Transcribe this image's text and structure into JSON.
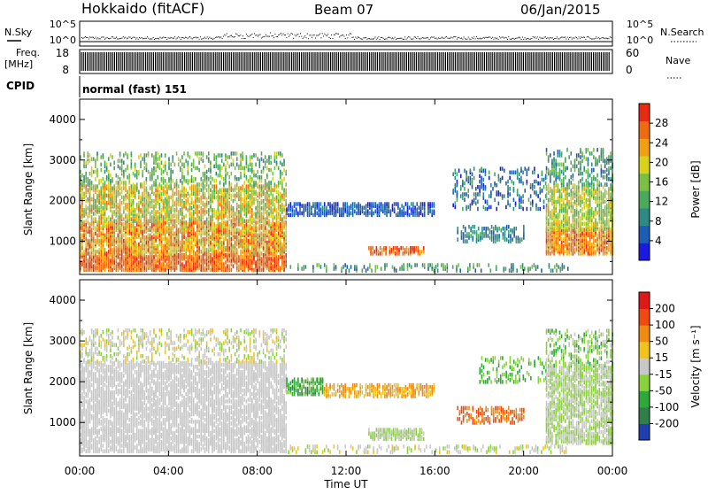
{
  "header": {
    "station": "Hokkaido (fitACF)",
    "beam": "Beam 07",
    "date": "06/Jan/2015"
  },
  "cpid_label": "CPID",
  "mode_label": "normal (fast) 151",
  "sky_panel": {
    "left_label": "N.Sky",
    "right_label": "N.Search",
    "left_ticks": [
      "10^5",
      "10^0"
    ],
    "right_ticks": [
      "10^5",
      "10^0"
    ]
  },
  "freq_panel": {
    "left_label_1": "Freq.",
    "left_label_2": "[MHz]",
    "right_label": "Nave",
    "left_ticks": [
      "18",
      "8"
    ],
    "right_ticks": [
      "60",
      "0"
    ]
  },
  "chart_data": [
    {
      "type": "heatmap",
      "panel": "power",
      "ylabel": "Slant Range [km]",
      "ylim": [
        180,
        4500
      ],
      "yticks": [
        1000,
        2000,
        3000,
        4000
      ],
      "colorbar": {
        "label": "Power [dB]",
        "ticks": [
          4,
          8,
          12,
          16,
          20,
          24,
          28
        ],
        "range": [
          0,
          32
        ],
        "colors": [
          "#1a1ae0",
          "#1d5db5",
          "#2f8a86",
          "#4ca85a",
          "#7bc044",
          "#d8d21a",
          "#f0a012",
          "#f06a10",
          "#e82a10"
        ]
      }
    },
    {
      "type": "heatmap",
      "panel": "velocity",
      "ylabel": "Slant Range [km]",
      "ylim": [
        180,
        4500
      ],
      "yticks": [
        1000,
        2000,
        3000,
        4000
      ],
      "xlabel": "Time UT",
      "xticks": [
        "00:00",
        "04:00",
        "08:00",
        "12:00",
        "16:00",
        "20:00",
        "00:00"
      ],
      "xlim_hours": [
        0,
        24
      ],
      "colorbar": {
        "label": "Velocity [m s⁻¹]",
        "ticks": [
          "200",
          "100",
          "50",
          "15",
          "-15",
          "-50",
          "-100",
          "-200"
        ],
        "colors": [
          "#1f3fb0",
          "#2f7f4a",
          "#2fa83a",
          "#8ad23a",
          "#c8c8c8",
          "#f0c21a",
          "#f08a10",
          "#f04a10",
          "#e01818"
        ]
      }
    }
  ]
}
